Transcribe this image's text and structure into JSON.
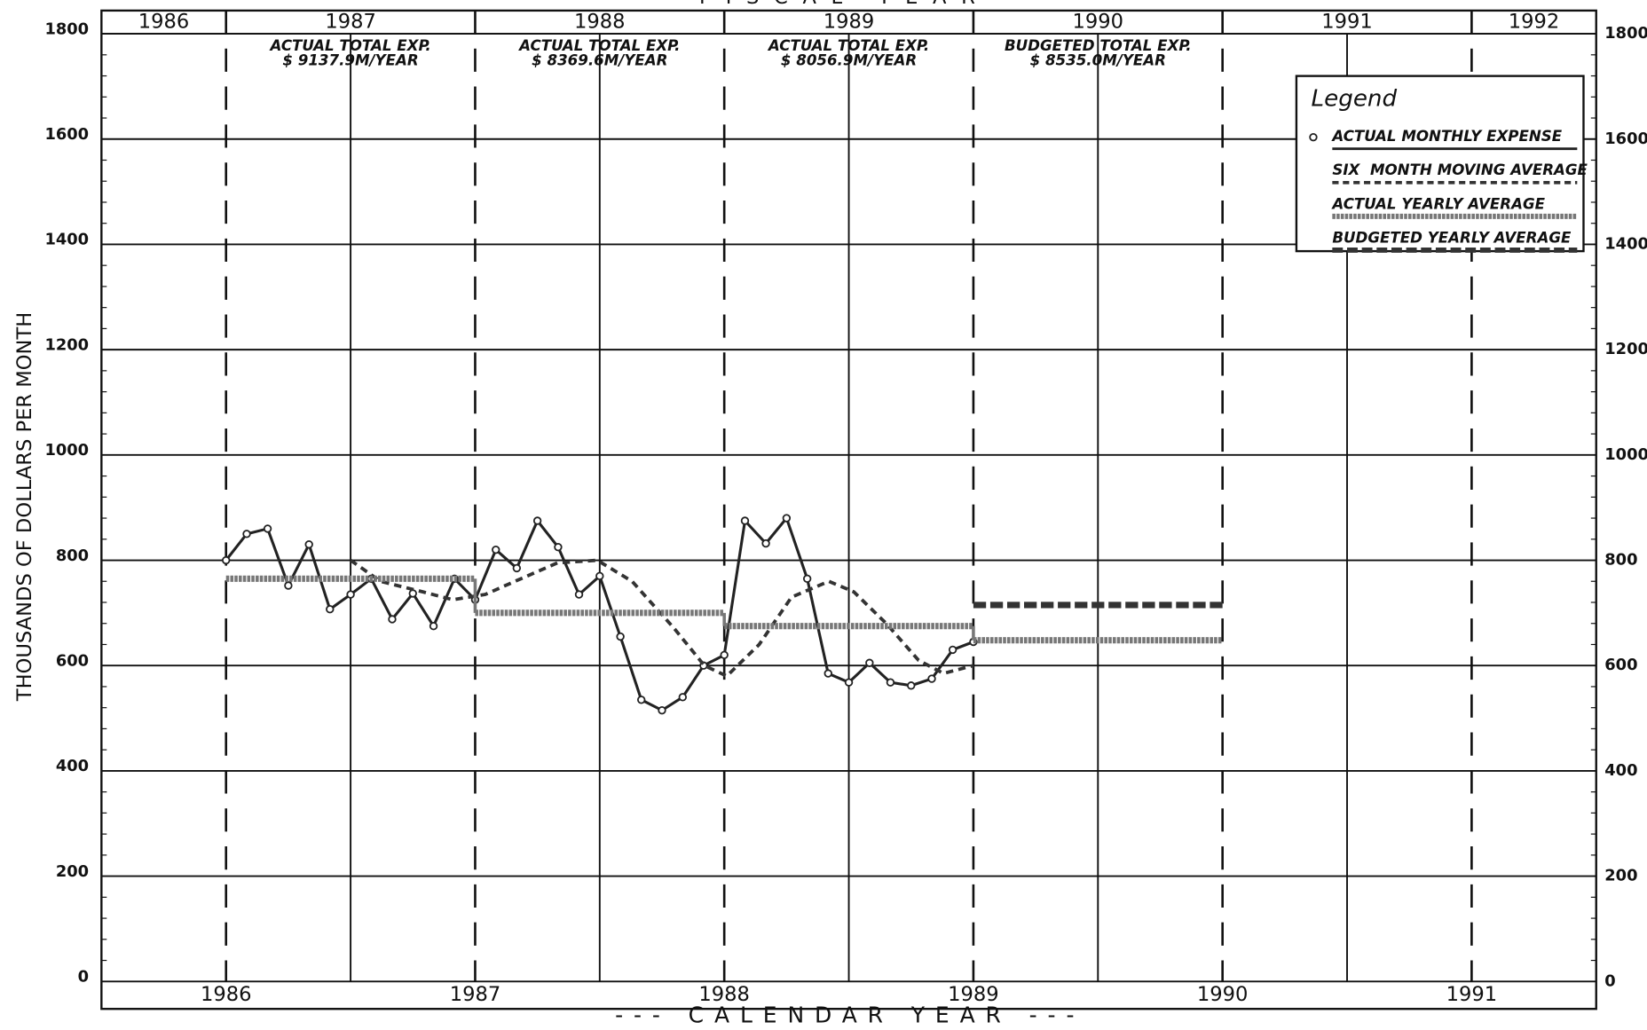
{
  "chart_data": {
    "type": "line",
    "title": "FISCAL YEAR",
    "xlabel": "--- CALENDAR YEAR ---",
    "ylabel": "THOUSANDS OF DOLLARS PER MONTH",
    "xlim": [
      1985.5,
      1991.5
    ],
    "xticks": [
      1986,
      1987,
      1988,
      1989,
      1990,
      1991
    ],
    "ylim": [
      0,
      1800
    ],
    "yticks": [
      0,
      200,
      400,
      600,
      800,
      1000,
      1200,
      1400,
      1600,
      1800
    ],
    "fiscal_years": [
      1986,
      1987,
      1988,
      1989,
      1990,
      1991,
      1992
    ],
    "annotations": [
      [
        "ACTUAL TOTAL EXP.",
        "$ 9137.9M/YEAR"
      ],
      [
        "ACTUAL TOTAL EXP.",
        "$ 8369.6M/YEAR"
      ],
      [
        "ACTUAL TOTAL EXP.",
        "$ 8056.9M/YEAR"
      ],
      [
        "BUDGETED TOTAL EXP.",
        "$ 8535.0M/YEAR"
      ]
    ],
    "legend_title": "Legend",
    "grid": true,
    "series": [
      {
        "name": "ACTUAL MONTHLY EXPENSE",
        "color": "#222222",
        "style": "marker-line",
        "x": [
          1986,
          1986.083,
          1986.167,
          1986.25,
          1986.333,
          1986.417,
          1986.5,
          1986.583,
          1986.667,
          1986.75,
          1986.833,
          1986.917,
          1987,
          1987.083,
          1987.167,
          1987.25,
          1987.333,
          1987.417,
          1987.5,
          1987.583,
          1987.667,
          1987.75,
          1987.833,
          1987.917,
          1988,
          1988.083,
          1988.167,
          1988.25,
          1988.333,
          1988.417,
          1988.5,
          1988.583,
          1988.667,
          1988.75,
          1988.833,
          1988.917,
          1989
        ],
        "values": [
          800,
          850,
          860,
          752,
          830,
          707,
          735,
          765,
          688,
          737,
          675,
          765,
          725,
          820,
          785,
          875,
          825,
          735,
          770,
          655,
          535,
          515,
          540,
          600,
          620,
          875,
          832,
          880,
          765,
          585,
          568,
          605,
          568,
          562,
          575,
          630,
          645
        ]
      },
      {
        "name": "SIX  MONTH MOVING AVERAGE",
        "color": "#333333",
        "style": "dashed",
        "x": [
          1986.5,
          1986.62,
          1986.79,
          1986.91,
          1987.04,
          1987.16,
          1987.33,
          1987.49,
          1987.63,
          1987.8,
          1987.92,
          1988.01,
          1988.14,
          1988.27,
          1988.42,
          1988.52,
          1988.65,
          1988.78,
          1988.88,
          1989
        ],
        "values": [
          800,
          760,
          740,
          725,
          735,
          760,
          795,
          800,
          760,
          670,
          600,
          580,
          640,
          730,
          760,
          740,
          680,
          610,
          585,
          600
        ]
      },
      {
        "name": "ACTUAL YEARLY AVERAGE",
        "color": "#777777",
        "style": "step",
        "x": [
          1986,
          1987,
          1988,
          1989
        ],
        "values": [
          765,
          700,
          675,
          648
        ]
      },
      {
        "name": "BUDGETED YEARLY AVERAGE",
        "color": "#333333",
        "style": "step-dashed",
        "x": [
          1989
        ],
        "values": [
          715
        ]
      }
    ]
  }
}
